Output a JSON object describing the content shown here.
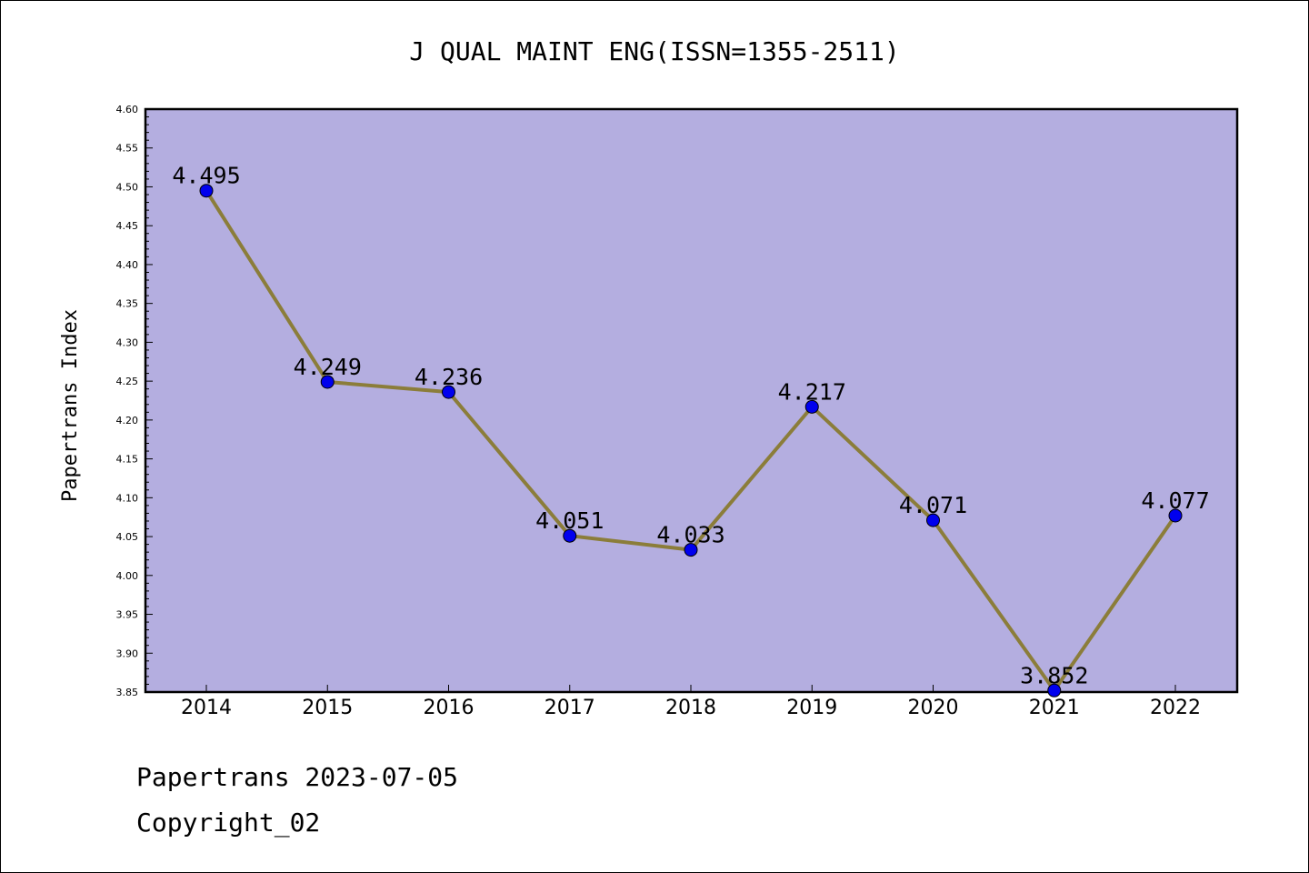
{
  "chart_data": {
    "type": "line",
    "title": "J QUAL MAINT ENG(ISSN=1355-2511)",
    "xlabel": "",
    "ylabel": "Papertrans Index",
    "categories": [
      "2014",
      "2015",
      "2016",
      "2017",
      "2018",
      "2019",
      "2020",
      "2021",
      "2022"
    ],
    "values": [
      4.495,
      4.249,
      4.236,
      4.051,
      4.033,
      4.217,
      4.071,
      3.852,
      4.077
    ],
    "data_labels": [
      "4.495",
      "4.249",
      "4.236",
      "4.051",
      "4.033",
      "4.217",
      "4.071",
      "3.852",
      "4.077"
    ],
    "ylim": [
      3.85,
      4.6
    ],
    "yticks": [
      "3.85",
      "3.90",
      "3.95",
      "4.00",
      "4.05",
      "4.10",
      "4.15",
      "4.20",
      "4.25",
      "4.30",
      "4.35",
      "4.40",
      "4.45",
      "4.50",
      "4.55",
      "4.60"
    ],
    "grid": false,
    "colors": {
      "plot_background": "#b4aee0",
      "line": "#8b7d3a",
      "marker": "#0000ee"
    }
  },
  "footer": {
    "line1": "Papertrans 2023-07-05",
    "line2": "Copyright_02"
  }
}
